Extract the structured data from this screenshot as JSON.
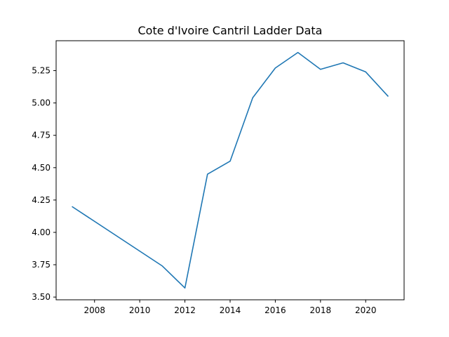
{
  "chart_data": {
    "type": "line",
    "title": "Cote d'Ivoire Cantril Ladder Data",
    "xlabel": "",
    "ylabel": "",
    "x": [
      2007,
      2011,
      2012,
      2013,
      2014,
      2015,
      2016,
      2017,
      2018,
      2019,
      2020,
      2021
    ],
    "series": [
      {
        "values": [
          4.2,
          3.74,
          3.57,
          4.45,
          4.55,
          5.04,
          5.27,
          5.39,
          5.26,
          5.31,
          5.24,
          5.05
        ],
        "color": "#1f77b4"
      }
    ],
    "xlim": [
      2006.3,
      2021.7
    ],
    "ylim": [
      3.479,
      5.481
    ],
    "xticks": [
      2008,
      2010,
      2012,
      2014,
      2016,
      2018,
      2020
    ],
    "yticks": [
      3.5,
      3.75,
      4.0,
      4.25,
      4.5,
      4.75,
      5.0,
      5.25
    ],
    "grid": false,
    "legend": "none"
  }
}
